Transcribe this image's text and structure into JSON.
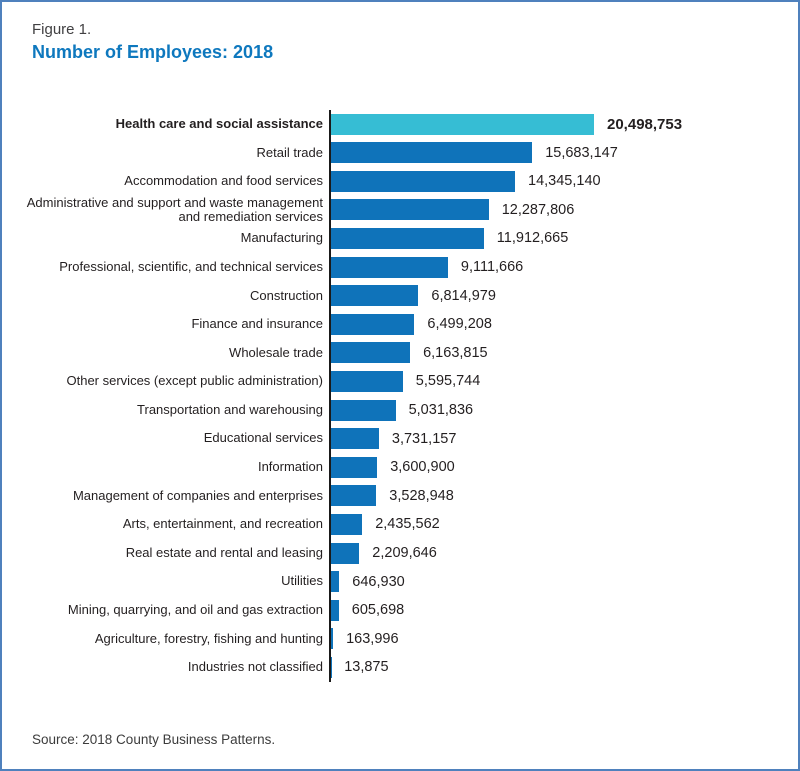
{
  "figure": {
    "label": "Figure 1.",
    "title": "Number of Employees: 2018"
  },
  "source": "Source: 2018 County Business Patterns.",
  "colors": {
    "title": "#0E78BE",
    "bar": "#0F73BA",
    "highlight": "#36BDD4",
    "axis": "#1A1A1A",
    "border": "#4F81BD"
  },
  "chart_data": {
    "type": "bar",
    "orientation": "horizontal",
    "title": "Number of Employees: 2018",
    "xlabel": "",
    "ylabel": "",
    "xlim": [
      0,
      20498753
    ],
    "grid": false,
    "legend": false,
    "highlight_index": 0,
    "categories": [
      "Health care and social assistance",
      "Retail trade",
      "Accommodation and food services",
      "Administrative and support and waste management and remediation services",
      "Manufacturing",
      "Professional, scientific, and technical services",
      "Construction",
      "Finance and insurance",
      "Wholesale trade",
      "Other services (except public administration)",
      "Transportation and warehousing",
      "Educational services",
      "Information",
      "Management of companies and enterprises",
      "Arts, entertainment, and recreation",
      "Real estate and rental and leasing",
      "Utilities",
      "Mining, quarrying, and oil and gas extraction",
      "Agriculture, forestry, fishing and hunting",
      "Industries not classified"
    ],
    "values": [
      20498753,
      15683147,
      14345140,
      12287806,
      11912665,
      9111666,
      6814979,
      6499208,
      6163815,
      5595744,
      5031836,
      3731157,
      3600900,
      3528948,
      2435562,
      2209646,
      646930,
      605698,
      163996,
      13875
    ],
    "value_labels": [
      "20,498,753",
      "15,683,147",
      "14,345,140",
      "12,287,806",
      "11,912,665",
      "9,111,666",
      "6,814,979",
      "6,499,208",
      "6,163,815",
      "5,595,744",
      "5,031,836",
      "3,731,157",
      "3,600,900",
      "3,528,948",
      "2,435,562",
      "2,209,646",
      "646,930",
      "605,698",
      "163,996",
      "13,875"
    ]
  }
}
